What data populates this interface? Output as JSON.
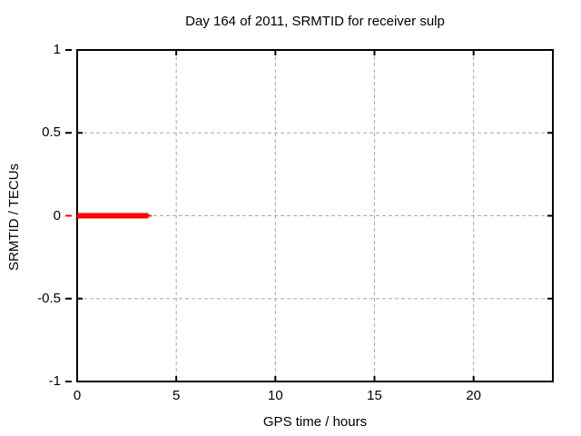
{
  "colors": {
    "background": "#ffffff",
    "text": "#000000",
    "border": "#000000",
    "grid": "#a8a8a8",
    "series": "#ff0000"
  },
  "chart_data": {
    "type": "line",
    "title": "Day 164 of 2011, SRMTID for receiver sulp",
    "xlabel": "GPS time / hours",
    "ylabel": "SRMTID / TECUs",
    "xlim": [
      0,
      24
    ],
    "ylim": [
      -1,
      1
    ],
    "grid": true,
    "xticks": [
      {
        "value": 0,
        "label": "0"
      },
      {
        "value": 5,
        "label": "5"
      },
      {
        "value": 10,
        "label": "10"
      },
      {
        "value": 15,
        "label": "15"
      },
      {
        "value": 20,
        "label": "20"
      }
    ],
    "yticks": [
      {
        "value": 1,
        "label": "1"
      },
      {
        "value": 0.5,
        "label": "0.5"
      },
      {
        "value": 0,
        "label": "0"
      },
      {
        "value": -0.5,
        "label": "-0.5"
      },
      {
        "value": -1,
        "label": "-1"
      }
    ],
    "grid_xticks": [
      5,
      10,
      15,
      20
    ],
    "grid_yticks": [
      0.5,
      0,
      -0.5
    ],
    "zero_ytick_color": "#ff0000",
    "series": [
      {
        "name": "SRMTID",
        "color": "#ff0000",
        "y_value": 0,
        "x_start": 0,
        "x_end": 3.75,
        "rendered_segments": [
          {
            "x1": 0,
            "x2": 3.6,
            "y": 0,
            "thickness_px": 6
          },
          {
            "x1": 3.6,
            "x2": 3.75,
            "y": 0,
            "thickness_px": 2
          }
        ]
      }
    ]
  }
}
